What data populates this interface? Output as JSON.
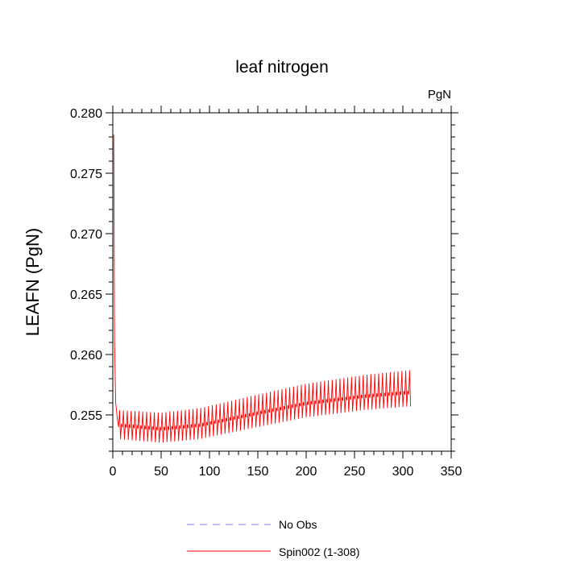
{
  "chart_data": {
    "type": "line",
    "title": "leaf nitrogen",
    "units_label": "PgN",
    "xlabel": "",
    "ylabel": "LEAFN  (PgN)",
    "xlim": [
      0,
      350
    ],
    "ylim": [
      0.252,
      0.28
    ],
    "x_ticks": [
      0,
      50,
      100,
      150,
      200,
      250,
      300,
      350
    ],
    "x_tick_labels": [
      "0",
      "50",
      "100",
      "150",
      "200",
      "250",
      "300",
      "350"
    ],
    "y_ticks": [
      0.255,
      0.26,
      0.265,
      0.27,
      0.275,
      0.28
    ],
    "y_tick_labels": [
      "0.255",
      "0.260",
      "0.265",
      "0.270",
      "0.275",
      "0.280"
    ],
    "series": [
      {
        "name": "Spin002 (1-308)",
        "color": "#ff0000",
        "style": "solid",
        "x_range": [
          1,
          308
        ],
        "start_value": 0.2782,
        "drop_to": 0.2542,
        "drop_by_x": 6,
        "baseline_points": [
          [
            6,
            0.254
          ],
          [
            50,
            0.2537
          ],
          [
            90,
            0.254
          ],
          [
            150,
            0.255
          ],
          [
            200,
            0.2558
          ],
          [
            260,
            0.2564
          ],
          [
            305,
            0.2567
          ]
        ],
        "cycle_period": 4,
        "seasonal_amplitude": 0.0016,
        "peak_offset_start": 0.0014,
        "peak_offset_end": 0.002,
        "trough_offset": 0.001
      },
      {
        "name": "No Obs",
        "color": "#7777ff",
        "style": "dashed",
        "values": []
      }
    ],
    "legend": [
      "No Obs",
      "Spin002 (1-308)"
    ]
  }
}
